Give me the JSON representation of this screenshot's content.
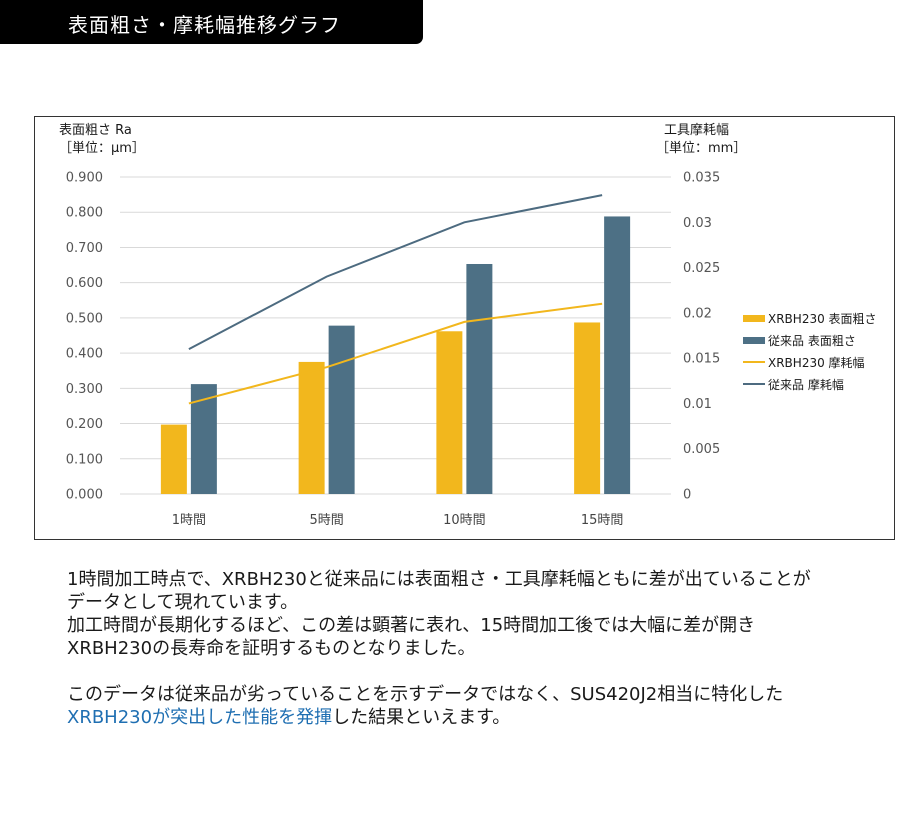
{
  "header": {
    "title": "表面粗さ・摩耗幅推移グラフ"
  },
  "chart_data": {
    "type": "bar",
    "categories": [
      "1時間",
      "5時間",
      "10時間",
      "15時間"
    ],
    "y_left": {
      "label_line1": "表面粗さ Ra",
      "label_line2": "［単位：μm］",
      "ticks": [
        "0.000",
        "0.100",
        "0.200",
        "0.300",
        "0.400",
        "0.500",
        "0.600",
        "0.700",
        "0.800",
        "0.900"
      ],
      "ylim": [
        0,
        0.9
      ]
    },
    "y_right": {
      "label_line1": "工具摩耗幅",
      "label_line2": "［単位：mm］",
      "ticks": [
        "0",
        "0.005",
        "0.01",
        "0.015",
        "0.02",
        "0.025",
        "0.03",
        "0.035"
      ],
      "ylim": [
        0,
        0.035
      ]
    },
    "grid": true,
    "legend_position": "right",
    "series": [
      {
        "name": "XRBH230 表面粗さ",
        "type": "bar",
        "axis": "left",
        "color": "#f2b71d",
        "values": [
          0.197,
          0.375,
          0.462,
          0.487
        ]
      },
      {
        "name": "従来品 表面粗さ",
        "type": "bar",
        "axis": "left",
        "color": "#4d7085",
        "values": [
          0.312,
          0.478,
          0.653,
          0.788
        ]
      },
      {
        "name": "XRBH230 摩耗幅",
        "type": "line",
        "axis": "right",
        "color": "#f2b71d",
        "values": [
          0.01,
          0.014,
          0.019,
          0.021
        ]
      },
      {
        "name": "従来品 摩耗幅",
        "type": "line",
        "axis": "right",
        "color": "#4d6b80",
        "values": [
          0.016,
          0.024,
          0.03,
          0.033
        ]
      }
    ]
  },
  "description": {
    "line1": "1時間加工時点で、XRBH230と従来品には表面粗さ・工具摩耗幅ともに差が出ていることが",
    "line2": "データとして現れています。",
    "line3": "加工時間が長期化するほど、この差は顕著に表れ、15時間加工後では大幅に差が開き",
    "line4": "XRBH230の長寿命を証明するものとなりました。",
    "line5": "このデータは従来品が劣っていることを示すデータではなく、SUS420J2相当に特化した",
    "line6_highlight": "XRBH230が突出した性能を発揮",
    "line6_rest": "した結果といえます。"
  }
}
